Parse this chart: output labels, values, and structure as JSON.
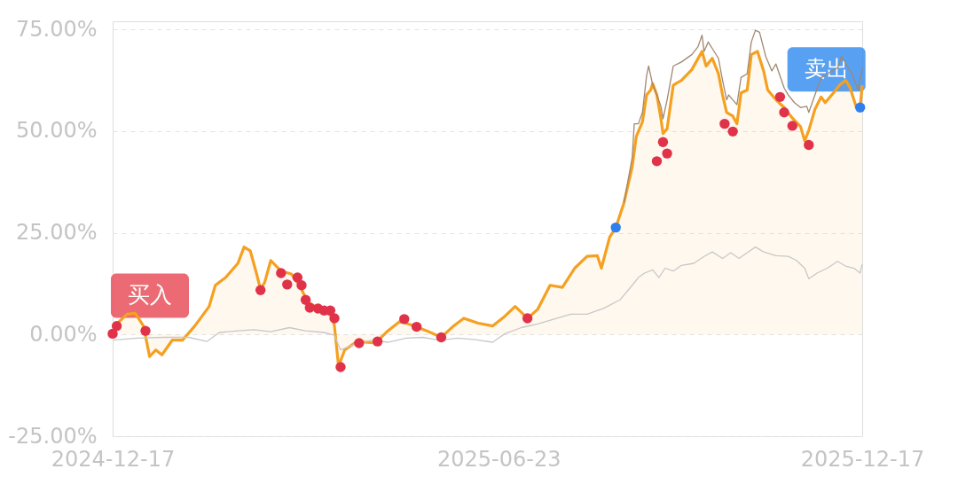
{
  "chart_data": {
    "type": "line",
    "xlim": [
      "2024-12-17",
      "2025-12-17"
    ],
    "xticks": [
      "2024-12-17",
      "2025-06-23",
      "2025-12-17"
    ],
    "ylim": [
      -25,
      77
    ],
    "yticks": [
      {
        "value": -25,
        "label": "-25.00%"
      },
      {
        "value": 0,
        "label": "0.00%"
      },
      {
        "value": 25,
        "label": "25.00%"
      },
      {
        "value": 50,
        "label": "50.00%"
      },
      {
        "value": 75,
        "label": "75.00%"
      }
    ],
    "grid": "y",
    "annotations": [
      {
        "text": "买入",
        "x": "2024-12-17",
        "y": 0.2
      },
      {
        "text": "卖出",
        "x": "2025-12-16",
        "y": 55.8
      }
    ],
    "series": [
      {
        "type": "area",
        "color": "#f5a020",
        "x": [
          "2024-12-17",
          "2024-12-20",
          "2024-12-24",
          "2024-12-28",
          "2025-01-01",
          "2025-01-04",
          "2025-01-07",
          "2025-01-10",
          "2025-01-15",
          "2025-01-20",
          "2025-01-26",
          "2025-02-02",
          "2025-02-05",
          "2025-02-10",
          "2025-02-16",
          "2025-02-19",
          "2025-02-22",
          "2025-02-25",
          "2025-02-27",
          "2025-03-01",
          "2025-03-04",
          "2025-03-09",
          "2025-03-14",
          "2025-03-18",
          "2025-03-22",
          "2025-03-28",
          "2025-04-03",
          "2025-04-04",
          "2025-04-06",
          "2025-04-09",
          "2025-04-15",
          "2025-04-24",
          "2025-04-30",
          "2025-05-06",
          "2025-05-13",
          "2025-05-19",
          "2025-05-26",
          "2025-06-01",
          "2025-06-06",
          "2025-06-13",
          "2025-06-20",
          "2025-06-26",
          "2025-07-01",
          "2025-07-07",
          "2025-07-12",
          "2025-07-18",
          "2025-07-24",
          "2025-07-30",
          "2025-08-05",
          "2025-08-10",
          "2025-08-12",
          "2025-08-16",
          "2025-08-19",
          "2025-08-23",
          "2025-08-27",
          "2025-08-29",
          "2025-09-01",
          "2025-09-03",
          "2025-09-05",
          "2025-09-06",
          "2025-09-08",
          "2025-09-10",
          "2025-09-11",
          "2025-09-13",
          "2025-09-16",
          "2025-09-20",
          "2025-09-25",
          "2025-09-30",
          "2025-10-02",
          "2025-10-05",
          "2025-10-08",
          "2025-10-10",
          "2025-10-12",
          "2025-10-15",
          "2025-10-17",
          "2025-10-19",
          "2025-10-22",
          "2025-10-24",
          "2025-10-27",
          "2025-10-30",
          "2025-11-01",
          "2025-11-05",
          "2025-11-09",
          "2025-11-13",
          "2025-11-17",
          "2025-11-19",
          "2025-11-21",
          "2025-11-24",
          "2025-11-27",
          "2025-11-29",
          "2025-12-03",
          "2025-12-06",
          "2025-12-09",
          "2025-12-11",
          "2025-12-14",
          "2025-12-16",
          "2025-12-17"
        ],
        "values": [
          0.2,
          3.1,
          5.0,
          5.2,
          2.1,
          -5.4,
          -3.8,
          -5.0,
          -1.4,
          -1.4,
          2.1,
          6.9,
          12.1,
          14.0,
          17.5,
          21.5,
          20.6,
          15.1,
          11.1,
          12.8,
          18.2,
          15.6,
          14.9,
          12.1,
          8.0,
          6.2,
          4.5,
          2.1,
          -7.8,
          -3.8,
          -1.7,
          -2.1,
          0.9,
          3.3,
          2.1,
          0.9,
          -0.7,
          2.1,
          4.0,
          2.8,
          2.1,
          4.5,
          6.9,
          4.0,
          6.2,
          12.1,
          11.6,
          16.3,
          19.2,
          19.4,
          16.3,
          23.9,
          26.3,
          32.4,
          41.2,
          48.7,
          52.3,
          58.9,
          60.1,
          61.7,
          58.9,
          53.0,
          49.4,
          50.6,
          61.3,
          62.5,
          65.1,
          69.6,
          66.0,
          67.9,
          64.1,
          58.9,
          54.6,
          53.7,
          51.8,
          59.4,
          60.1,
          68.8,
          69.6,
          64.8,
          60.1,
          57.7,
          55.8,
          53.2,
          51.1,
          47.6,
          50.2,
          55.4,
          58.4,
          57.0,
          59.4,
          61.3,
          62.5,
          60.8,
          56.1,
          55.8,
          61.3
        ]
      },
      {
        "color": "#a08870",
        "x": [
          "2025-08-23",
          "2025-08-27",
          "2025-08-28",
          "2025-08-30",
          "2025-09-01",
          "2025-09-03",
          "2025-09-04",
          "2025-09-06",
          "2025-09-08",
          "2025-09-10",
          "2025-09-11",
          "2025-09-13",
          "2025-09-16",
          "2025-09-20",
          "2025-09-25",
          "2025-09-28",
          "2025-09-30",
          "2025-10-01",
          "2025-10-03",
          "2025-10-05",
          "2025-10-08",
          "2025-10-10",
          "2025-10-12",
          "2025-10-13",
          "2025-10-17",
          "2025-10-19",
          "2025-10-22",
          "2025-10-24",
          "2025-10-26",
          "2025-10-28",
          "2025-10-31",
          "2025-11-03",
          "2025-11-05",
          "2025-11-09",
          "2025-11-11",
          "2025-11-14",
          "2025-11-17",
          "2025-11-20",
          "2025-11-21",
          "2025-11-24",
          "2025-11-27",
          "2025-11-29",
          "2025-12-02",
          "2025-12-05",
          "2025-12-07",
          "2025-12-09",
          "2025-12-12",
          "2025-12-15",
          "2025-12-17"
        ],
        "values": [
          32.4,
          43.5,
          51.8,
          51.8,
          54.6,
          63.6,
          66.0,
          61.3,
          58.9,
          56.1,
          53.0,
          57.7,
          66.0,
          67.0,
          68.8,
          70.7,
          73.6,
          69.6,
          71.9,
          70.3,
          67.9,
          62.5,
          57.7,
          58.9,
          56.5,
          63.2,
          64.1,
          71.9,
          74.8,
          74.3,
          68.4,
          64.8,
          66.5,
          60.6,
          58.9,
          57.0,
          55.8,
          56.1,
          54.6,
          58.9,
          63.2,
          63.6,
          64.8,
          65.5,
          68.4,
          66.5,
          64.1,
          60.1,
          65.5
        ]
      },
      {
        "color": "#c8c8c8",
        "x": [
          "2024-12-17",
          "2024-12-29",
          "2025-01-11",
          "2025-01-23",
          "2025-02-01",
          "2025-02-07",
          "2025-02-16",
          "2025-02-24",
          "2025-03-04",
          "2025-03-13",
          "2025-03-21",
          "2025-03-30",
          "2025-04-04",
          "2025-04-07",
          "2025-04-13",
          "2025-04-22",
          "2025-04-30",
          "2025-05-09",
          "2025-05-17",
          "2025-05-25",
          "2025-06-03",
          "2025-06-11",
          "2025-06-20",
          "2025-06-26",
          "2025-07-04",
          "2025-07-12",
          "2025-07-20",
          "2025-07-28",
          "2025-08-05",
          "2025-08-13",
          "2025-08-21",
          "2025-08-27",
          "2025-08-30",
          "2025-09-02",
          "2025-09-06",
          "2025-09-09",
          "2025-09-12",
          "2025-09-16",
          "2025-09-20",
          "2025-09-26",
          "2025-10-01",
          "2025-10-05",
          "2025-10-10",
          "2025-10-14",
          "2025-10-18",
          "2025-10-22",
          "2025-10-26",
          "2025-10-30",
          "2025-11-05",
          "2025-11-11",
          "2025-11-15",
          "2025-11-19",
          "2025-11-21",
          "2025-11-25",
          "2025-11-30",
          "2025-12-05",
          "2025-12-09",
          "2025-12-13",
          "2025-12-16",
          "2025-12-17"
        ],
        "values": [
          -1.4,
          -0.9,
          -0.7,
          -0.7,
          -1.7,
          0.5,
          0.9,
          1.2,
          0.7,
          1.7,
          0.9,
          0.5,
          -0.2,
          -3.8,
          -2.6,
          -1.4,
          -1.9,
          -0.9,
          -0.7,
          -1.4,
          -0.9,
          -1.2,
          -1.9,
          0.2,
          1.7,
          2.6,
          3.8,
          5.0,
          5.0,
          6.4,
          8.5,
          12.1,
          14.0,
          15.1,
          15.9,
          14.0,
          16.3,
          15.6,
          17.0,
          17.5,
          19.2,
          20.3,
          18.7,
          20.1,
          18.7,
          20.1,
          21.5,
          20.3,
          19.4,
          19.2,
          18.2,
          16.3,
          13.7,
          15.1,
          16.3,
          18.0,
          16.8,
          16.3,
          15.1,
          17.3
        ]
      },
      {
        "type": "scatter",
        "color": "#e0334a",
        "marker": "circle",
        "x": [
          "2024-12-17",
          "2024-12-19",
          "2025-01-02",
          "2025-02-27",
          "2025-03-09",
          "2025-03-12",
          "2025-03-17",
          "2025-03-19",
          "2025-03-21",
          "2025-03-23",
          "2025-03-27",
          "2025-03-30",
          "2025-04-02",
          "2025-04-04",
          "2025-04-07",
          "2025-04-16",
          "2025-04-25",
          "2025-05-08",
          "2025-05-14",
          "2025-05-26",
          "2025-07-07",
          "2025-09-08",
          "2025-09-11",
          "2025-09-13",
          "2025-10-11",
          "2025-10-15",
          "2025-11-07",
          "2025-11-09",
          "2025-11-13",
          "2025-11-21"
        ],
        "values": [
          0.2,
          2.1,
          0.9,
          10.9,
          15.1,
          12.3,
          14.0,
          12.1,
          8.5,
          6.6,
          6.4,
          5.9,
          5.9,
          4.0,
          -8.0,
          -2.1,
          -1.7,
          3.8,
          1.9,
          -0.7,
          4.0,
          42.6,
          47.3,
          44.5,
          51.8,
          49.9,
          58.4,
          54.6,
          51.3,
          46.6
        ]
      },
      {
        "type": "scatter",
        "color": "#2f80ed",
        "marker": "circle",
        "x": [
          "2025-08-19",
          "2025-12-16"
        ],
        "values": [
          26.3,
          55.8
        ]
      }
    ]
  }
}
